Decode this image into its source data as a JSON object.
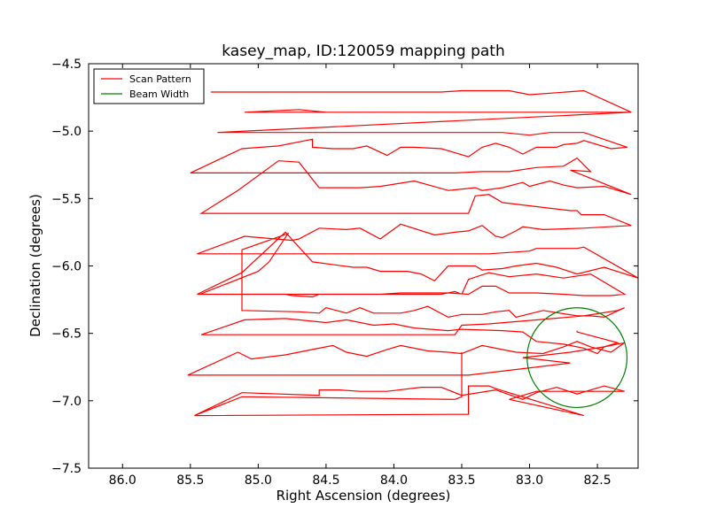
{
  "chart_data": {
    "type": "line",
    "title": "kasey_map, ID:120059 mapping path",
    "xlabel": "Right Ascension (degrees)",
    "ylabel": "Declination (degrees)",
    "xlim": [
      86.25,
      82.2
    ],
    "ylim": [
      -7.5,
      -4.5
    ],
    "x_ticks": [
      86.0,
      85.5,
      85.0,
      84.5,
      84.0,
      83.5,
      83.0,
      82.5
    ],
    "y_ticks": [
      -4.5,
      -5.0,
      -5.5,
      -6.0,
      -6.5,
      -7.0,
      -7.5
    ],
    "x_tick_labels": [
      "86.0",
      "85.5",
      "85.0",
      "84.5",
      "84.0",
      "83.5",
      "83.0",
      "82.5"
    ],
    "y_tick_labels": [
      "−4.5",
      "−5.0",
      "−5.5",
      "−6.0",
      "−6.5",
      "−7.0",
      "−7.5"
    ],
    "grid": false,
    "legend_position": "upper-left",
    "series": [
      {
        "name": "Scan Pattern",
        "color": "#ff0000",
        "points": [
          [
            85.35,
            -4.71
          ],
          [
            84.35,
            -4.71
          ],
          [
            83.65,
            -4.71
          ],
          [
            83.5,
            -4.7
          ],
          [
            83.35,
            -4.7
          ],
          [
            83.15,
            -4.7
          ],
          [
            83.0,
            -4.73
          ],
          [
            82.6,
            -4.7
          ],
          [
            82.25,
            -4.86
          ],
          [
            85.1,
            -4.86
          ],
          [
            84.7,
            -4.84
          ],
          [
            84.5,
            -4.86
          ],
          [
            83.3,
            -4.86
          ],
          [
            82.25,
            -4.86
          ],
          [
            85.3,
            -5.01
          ],
          [
            83.2,
            -5.01
          ],
          [
            83.0,
            -5.03
          ],
          [
            82.85,
            -5.01
          ],
          [
            82.6,
            -5.01
          ],
          [
            82.28,
            -5.12
          ],
          [
            82.4,
            -5.13
          ],
          [
            82.6,
            -5.07
          ],
          [
            82.65,
            -5.09
          ],
          [
            82.75,
            -5.1
          ],
          [
            82.8,
            -5.12
          ],
          [
            82.95,
            -5.12
          ],
          [
            83.05,
            -5.17
          ],
          [
            83.15,
            -5.12
          ],
          [
            83.25,
            -5.09
          ],
          [
            83.35,
            -5.12
          ],
          [
            83.45,
            -5.19
          ],
          [
            83.65,
            -5.13
          ],
          [
            83.85,
            -5.12
          ],
          [
            83.95,
            -5.12
          ],
          [
            84.05,
            -5.18
          ],
          [
            84.2,
            -5.11
          ],
          [
            84.3,
            -5.13
          ],
          [
            84.45,
            -5.13
          ],
          [
            84.6,
            -5.12
          ],
          [
            84.6,
            -5.06
          ],
          [
            84.85,
            -5.11
          ],
          [
            85.12,
            -5.13
          ],
          [
            85.5,
            -5.31
          ],
          [
            83.55,
            -5.31
          ],
          [
            83.35,
            -5.3
          ],
          [
            83.15,
            -5.3
          ],
          [
            82.95,
            -5.27
          ],
          [
            82.75,
            -5.26
          ],
          [
            82.65,
            -5.2
          ],
          [
            82.55,
            -5.3
          ],
          [
            82.7,
            -5.29
          ],
          [
            82.25,
            -5.47
          ],
          [
            82.45,
            -5.41
          ],
          [
            82.65,
            -5.42
          ],
          [
            82.75,
            -5.4
          ],
          [
            82.85,
            -5.37
          ],
          [
            83.0,
            -5.41
          ],
          [
            83.05,
            -5.38
          ],
          [
            83.2,
            -5.42
          ],
          [
            83.35,
            -5.44
          ],
          [
            83.4,
            -5.42
          ],
          [
            83.6,
            -5.44
          ],
          [
            83.85,
            -5.37
          ],
          [
            84.1,
            -5.41
          ],
          [
            84.25,
            -5.42
          ],
          [
            84.55,
            -5.42
          ],
          [
            84.7,
            -5.23
          ],
          [
            84.85,
            -5.22
          ],
          [
            85.15,
            -5.44
          ],
          [
            85.42,
            -5.61
          ],
          [
            83.45,
            -5.61
          ],
          [
            83.4,
            -5.48
          ],
          [
            83.3,
            -5.47
          ],
          [
            83.2,
            -5.53
          ],
          [
            82.7,
            -5.59
          ],
          [
            82.65,
            -5.59
          ],
          [
            82.62,
            -5.62
          ],
          [
            82.45,
            -5.62
          ],
          [
            82.25,
            -5.7
          ],
          [
            82.6,
            -5.72
          ],
          [
            82.9,
            -5.73
          ],
          [
            83.05,
            -5.71
          ],
          [
            83.1,
            -5.74
          ],
          [
            83.2,
            -5.79
          ],
          [
            83.25,
            -5.78
          ],
          [
            83.35,
            -5.7
          ],
          [
            83.45,
            -5.74
          ],
          [
            83.55,
            -5.75
          ],
          [
            83.7,
            -5.77
          ],
          [
            83.95,
            -5.69
          ],
          [
            84.1,
            -5.8
          ],
          [
            84.25,
            -5.72
          ],
          [
            84.35,
            -5.73
          ],
          [
            84.55,
            -5.72
          ],
          [
            84.7,
            -5.8
          ],
          [
            84.75,
            -5.81
          ],
          [
            85.1,
            -5.78
          ],
          [
            85.45,
            -5.91
          ],
          [
            83.55,
            -5.91
          ],
          [
            83.3,
            -5.91
          ],
          [
            83.0,
            -5.89
          ],
          [
            82.95,
            -5.87
          ],
          [
            82.75,
            -5.87
          ],
          [
            82.65,
            -5.87
          ],
          [
            82.6,
            -5.86
          ],
          [
            82.2,
            -6.09
          ],
          [
            82.45,
            -6.01
          ],
          [
            82.65,
            -6.06
          ],
          [
            82.8,
            -6.01
          ],
          [
            82.95,
            -5.98
          ],
          [
            83.1,
            -6.0
          ],
          [
            83.2,
            -6.02
          ],
          [
            83.35,
            -6.03
          ],
          [
            83.4,
            -6.0
          ],
          [
            83.6,
            -6.0
          ],
          [
            83.7,
            -6.11
          ],
          [
            83.8,
            -6.06
          ],
          [
            83.9,
            -6.04
          ],
          [
            84.1,
            -6.04
          ],
          [
            84.2,
            -6.01
          ],
          [
            84.3,
            -6.01
          ],
          [
            84.6,
            -5.97
          ],
          [
            84.8,
            -5.75
          ],
          [
            85.12,
            -6.05
          ],
          [
            85.45,
            -6.21
          ],
          [
            83.65,
            -6.21
          ],
          [
            83.55,
            -6.19
          ],
          [
            83.5,
            -6.21
          ],
          [
            83.45,
            -6.1
          ],
          [
            83.3,
            -6.05
          ],
          [
            83.15,
            -6.08
          ],
          [
            82.95,
            -6.06
          ],
          [
            82.75,
            -6.09
          ],
          [
            82.55,
            -6.06
          ],
          [
            82.3,
            -6.21
          ],
          [
            82.4,
            -6.22
          ],
          [
            82.6,
            -6.22
          ],
          [
            82.75,
            -6.21
          ],
          [
            82.95,
            -6.2
          ],
          [
            83.15,
            -6.2
          ],
          [
            83.25,
            -6.15
          ],
          [
            83.35,
            -6.15
          ],
          [
            83.45,
            -6.21
          ],
          [
            83.6,
            -6.2
          ],
          [
            83.75,
            -6.2
          ],
          [
            83.95,
            -6.2
          ],
          [
            84.1,
            -6.21
          ],
          [
            84.2,
            -6.21
          ],
          [
            84.35,
            -6.21
          ],
          [
            84.55,
            -6.21
          ],
          [
            84.6,
            -6.23
          ],
          [
            84.75,
            -6.22
          ],
          [
            84.8,
            -6.21
          ],
          [
            85.43,
            -6.21
          ],
          [
            85.0,
            -6.04
          ],
          [
            84.92,
            -5.97
          ],
          [
            84.78,
            -5.76
          ],
          [
            85.12,
            -5.88
          ],
          [
            85.12,
            -6.33
          ],
          [
            84.7,
            -6.34
          ],
          [
            84.55,
            -6.35
          ],
          [
            84.5,
            -6.31
          ],
          [
            84.35,
            -6.35
          ],
          [
            84.25,
            -6.31
          ],
          [
            84.15,
            -6.35
          ],
          [
            83.95,
            -6.35
          ],
          [
            83.85,
            -6.33
          ],
          [
            83.75,
            -6.3
          ],
          [
            83.6,
            -6.38
          ],
          [
            83.5,
            -6.36
          ],
          [
            83.35,
            -6.36
          ],
          [
            83.25,
            -6.34
          ],
          [
            83.15,
            -6.33
          ],
          [
            83.1,
            -6.38
          ],
          [
            82.9,
            -6.33
          ],
          [
            82.65,
            -6.37
          ],
          [
            82.55,
            -6.37
          ],
          [
            82.45,
            -6.38
          ],
          [
            82.3,
            -6.31
          ],
          [
            82.35,
            -6.33
          ],
          [
            82.6,
            -6.37
          ],
          [
            83.3,
            -6.43
          ],
          [
            83.5,
            -6.44
          ],
          [
            83.55,
            -6.51
          ],
          [
            85.42,
            -6.51
          ],
          [
            85.1,
            -6.4
          ],
          [
            84.8,
            -6.39
          ],
          [
            84.5,
            -6.42
          ],
          [
            84.35,
            -6.4
          ],
          [
            84.15,
            -6.44
          ],
          [
            84.0,
            -6.43
          ],
          [
            83.85,
            -6.46
          ],
          [
            83.6,
            -6.48
          ],
          [
            83.5,
            -6.47
          ],
          [
            83.2,
            -6.48
          ],
          [
            83.05,
            -6.49
          ],
          [
            82.95,
            -6.56
          ],
          [
            82.75,
            -6.58
          ],
          [
            82.6,
            -6.61
          ],
          [
            82.5,
            -6.65
          ],
          [
            82.45,
            -6.6
          ],
          [
            82.35,
            -6.57
          ],
          [
            82.65,
            -6.49
          ],
          [
            82.65,
            -6.48
          ]
        ]
      },
      {
        "name": "",
        "color": "#ff0000",
        "points": [
          [
            85.52,
            -6.81
          ],
          [
            85.15,
            -6.64
          ],
          [
            85.05,
            -6.69
          ],
          [
            84.8,
            -6.66
          ],
          [
            84.6,
            -6.62
          ],
          [
            84.45,
            -6.59
          ],
          [
            84.35,
            -6.64
          ],
          [
            84.2,
            -6.67
          ],
          [
            84.05,
            -6.62
          ],
          [
            83.95,
            -6.59
          ],
          [
            83.75,
            -6.63
          ],
          [
            83.6,
            -6.64
          ],
          [
            83.5,
            -6.65
          ],
          [
            83.35,
            -6.59
          ],
          [
            83.1,
            -6.64
          ],
          [
            82.9,
            -6.65
          ],
          [
            82.75,
            -6.6
          ],
          [
            82.65,
            -6.56
          ],
          [
            82.55,
            -6.6
          ],
          [
            82.4,
            -6.64
          ],
          [
            82.3,
            -6.57
          ],
          [
            82.45,
            -6.6
          ],
          [
            82.7,
            -6.64
          ],
          [
            83.05,
            -6.68
          ],
          [
            82.7,
            -6.72
          ],
          [
            83.45,
            -6.81
          ],
          [
            85.52,
            -6.81
          ]
        ]
      },
      {
        "name": "",
        "color": "#ff0000",
        "points": [
          [
            85.47,
            -7.11
          ],
          [
            85.12,
            -6.94
          ],
          [
            84.55,
            -6.96
          ],
          [
            84.55,
            -6.92
          ],
          [
            84.4,
            -6.92
          ],
          [
            84.25,
            -6.93
          ],
          [
            84.05,
            -6.93
          ],
          [
            83.8,
            -6.9
          ],
          [
            83.65,
            -6.9
          ],
          [
            83.5,
            -6.96
          ],
          [
            83.25,
            -6.92
          ],
          [
            83.05,
            -6.99
          ],
          [
            82.95,
            -6.94
          ],
          [
            82.8,
            -6.9
          ],
          [
            82.65,
            -6.95
          ],
          [
            82.45,
            -6.89
          ],
          [
            82.3,
            -6.93
          ],
          [
            82.65,
            -6.93
          ],
          [
            82.95,
            -6.93
          ],
          [
            83.15,
            -6.99
          ],
          [
            82.6,
            -7.11
          ],
          [
            83.25,
            -6.91
          ],
          [
            83.3,
            -6.89
          ],
          [
            83.45,
            -6.89
          ],
          [
            83.45,
            -7.1
          ],
          [
            85.47,
            -7.11
          ],
          [
            85.12,
            -6.97
          ],
          [
            83.55,
            -6.99
          ],
          [
            83.5,
            -6.97
          ],
          [
            83.5,
            -6.64
          ]
        ]
      }
    ],
    "beam": {
      "name": "Beam Width",
      "color": "#008000",
      "center_ra": 82.65,
      "center_dec": -6.68,
      "radius_deg": 0.37
    }
  }
}
